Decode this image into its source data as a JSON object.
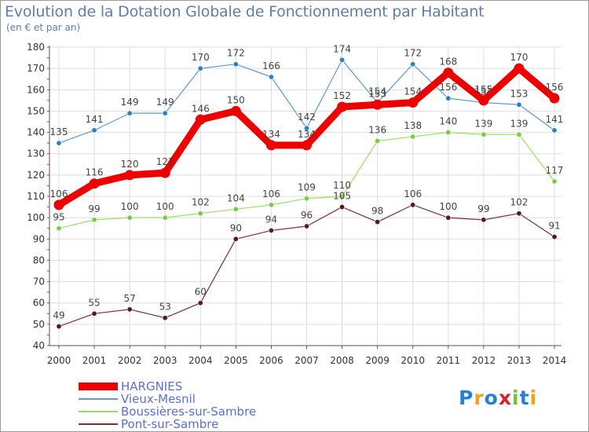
{
  "chart_data": {
    "type": "line",
    "title": "Evolution de la Dotation Globale de Fonctionnement par Habitant",
    "subtitle": "(en € et par an)",
    "xlabel": "",
    "ylabel": "",
    "x": [
      "2000",
      "2001",
      "2002",
      "2003",
      "2004",
      "2005",
      "2006",
      "2007",
      "2008",
      "2009",
      "2010",
      "2011",
      "2012",
      "2013",
      "2014"
    ],
    "ylim": [
      40,
      180
    ],
    "yticks": [
      40,
      50,
      60,
      70,
      80,
      90,
      100,
      110,
      120,
      130,
      140,
      150,
      160,
      170,
      180
    ],
    "grid": true,
    "legend_position": "bottom-left",
    "series": [
      {
        "name": "Vieux-Mesnil",
        "color": "#5b9bd0",
        "marker_color": "#2e7fc2",
        "values": [
          135,
          141,
          149,
          149,
          170,
          172,
          166,
          142,
          174,
          154,
          172,
          156,
          154,
          153,
          141
        ]
      },
      {
        "name": "Boussières-sur-Sambre",
        "color": "#99e066",
        "marker_color": "#77cc44",
        "values": [
          95,
          99,
          100,
          100,
          102,
          104,
          106,
          109,
          110,
          136,
          138,
          140,
          139,
          139,
          117
        ]
      },
      {
        "name": "Pont-sur-Sambre",
        "color": "#7a3030",
        "marker_color": "#5a1818",
        "values": [
          49,
          55,
          57,
          53,
          60,
          90,
          94,
          96,
          105,
          98,
          106,
          100,
          99,
          102,
          91
        ]
      },
      {
        "name": "HARGNIES",
        "color": "#ee0000",
        "marker_color": "#ee0000",
        "values": [
          106,
          116,
          120,
          121,
          146,
          150,
          134,
          134,
          152,
          153,
          154,
          168,
          155,
          170,
          156
        ]
      }
    ]
  },
  "legend": [
    {
      "name": "HARGNIES",
      "color": "#ee0000"
    },
    {
      "name": "Vieux-Mesnil",
      "color": "#5b9bd0"
    },
    {
      "name": "Boussières-sur-Sambre",
      "color": "#99e066"
    },
    {
      "name": "Pont-sur-Sambre",
      "color": "#7a3030"
    }
  ],
  "brand": {
    "text": "Proxiti",
    "letters": [
      {
        "ch": "P",
        "color": "#2a7fd4"
      },
      {
        "ch": "r",
        "color": "#f0a020"
      },
      {
        "ch": "o",
        "color": "#2a7fd4"
      },
      {
        "ch": "x",
        "color": "#e02020"
      },
      {
        "ch": "i",
        "color": "#6cc04a"
      },
      {
        "ch": "t",
        "color": "#2a7fd4"
      },
      {
        "ch": "i",
        "color": "#f0a020"
      }
    ]
  }
}
